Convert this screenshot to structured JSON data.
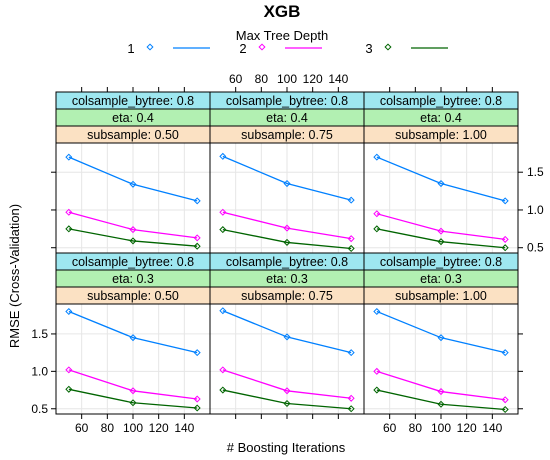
{
  "chart_data": {
    "type": "line",
    "layout": "lattice-3x2",
    "title": "XGB",
    "legend": {
      "title": "Max Tree Depth",
      "placement": "top",
      "entries": [
        {
          "label": "1",
          "color": "#0080ff"
        },
        {
          "label": "2",
          "color": "#ff00ff"
        },
        {
          "label": "3",
          "color": "#006400"
        }
      ]
    },
    "xlabel": "# Boosting Iterations",
    "ylabel": "RMSE (Cross-Validation)",
    "xlim": [
      40,
      160
    ],
    "ylim": [
      0.43,
      1.9
    ],
    "x_ticks": [
      60,
      80,
      100,
      120,
      140
    ],
    "y_ticks": [
      0.5,
      1.0,
      1.5
    ],
    "y_tick_labels": [
      "0.5",
      "1.0",
      "1.5"
    ],
    "grid": true,
    "x": [
      50,
      100,
      150
    ],
    "strip_colors": {
      "colsample": "#9ee7f0",
      "eta": "#b2f0b2",
      "subsample": "#fbe1c3"
    },
    "panels": [
      {
        "row": "top",
        "col": 0,
        "strips": [
          "colsample_bytree: 0.8",
          "eta: 0.4",
          "subsample: 0.50"
        ],
        "series": [
          {
            "name": "1",
            "values": [
              1.7,
              1.34,
              1.12
            ]
          },
          {
            "name": "2",
            "values": [
              0.97,
              0.74,
              0.63
            ]
          },
          {
            "name": "3",
            "values": [
              0.75,
              0.59,
              0.52
            ]
          }
        ]
      },
      {
        "row": "top",
        "col": 1,
        "strips": [
          "colsample_bytree: 0.8",
          "eta: 0.4",
          "subsample: 0.75"
        ],
        "series": [
          {
            "name": "1",
            "values": [
              1.71,
              1.35,
              1.13
            ]
          },
          {
            "name": "2",
            "values": [
              0.97,
              0.76,
              0.62
            ]
          },
          {
            "name": "3",
            "values": [
              0.74,
              0.57,
              0.49
            ]
          }
        ]
      },
      {
        "row": "top",
        "col": 2,
        "strips": [
          "colsample_bytree: 0.8",
          "eta: 0.4",
          "subsample: 1.00"
        ],
        "series": [
          {
            "name": "1",
            "values": [
              1.7,
              1.35,
              1.12
            ]
          },
          {
            "name": "2",
            "values": [
              0.95,
              0.72,
              0.61
            ]
          },
          {
            "name": "3",
            "values": [
              0.75,
              0.58,
              0.5
            ]
          }
        ]
      },
      {
        "row": "bottom",
        "col": 0,
        "strips": [
          "colsample_bytree: 0.8",
          "eta: 0.3",
          "subsample: 0.50"
        ],
        "series": [
          {
            "name": "1",
            "values": [
              1.8,
              1.45,
              1.25
            ]
          },
          {
            "name": "2",
            "values": [
              1.02,
              0.74,
              0.63
            ]
          },
          {
            "name": "3",
            "values": [
              0.76,
              0.58,
              0.51
            ]
          }
        ]
      },
      {
        "row": "bottom",
        "col": 1,
        "strips": [
          "colsample_bytree: 0.8",
          "eta: 0.3",
          "subsample: 0.75"
        ],
        "series": [
          {
            "name": "1",
            "values": [
              1.81,
              1.46,
              1.25
            ]
          },
          {
            "name": "2",
            "values": [
              1.02,
              0.74,
              0.64
            ]
          },
          {
            "name": "3",
            "values": [
              0.75,
              0.57,
              0.5
            ]
          }
        ]
      },
      {
        "row": "bottom",
        "col": 2,
        "strips": [
          "colsample_bytree: 0.8",
          "eta: 0.3",
          "subsample: 1.00"
        ],
        "series": [
          {
            "name": "1",
            "values": [
              1.8,
              1.45,
              1.25
            ]
          },
          {
            "name": "2",
            "values": [
              1.0,
              0.73,
              0.62
            ]
          },
          {
            "name": "3",
            "values": [
              0.75,
              0.56,
              0.49
            ]
          }
        ]
      }
    ]
  }
}
